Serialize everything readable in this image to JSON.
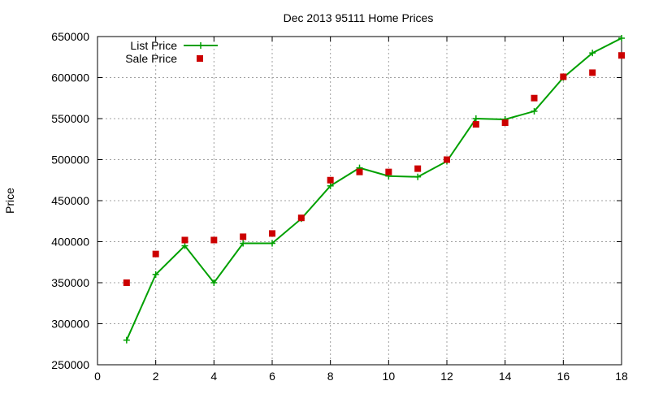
{
  "chart_data": {
    "type": "line",
    "title": "Dec 2013 95111 Home Prices",
    "xlabel": "",
    "ylabel": "Price",
    "xlim": [
      0,
      18
    ],
    "ylim": [
      250000,
      650000
    ],
    "x_ticks": [
      0,
      2,
      4,
      6,
      8,
      10,
      12,
      14,
      16,
      18
    ],
    "y_ticks": [
      250000,
      300000,
      350000,
      400000,
      450000,
      500000,
      550000,
      600000,
      650000
    ],
    "grid": true,
    "legend_position": "top-left",
    "series": [
      {
        "name": "List Price",
        "style": "line-with-plus-markers",
        "color": "#00a000",
        "x": [
          1,
          2,
          3,
          4,
          5,
          6,
          7,
          8,
          9,
          10,
          11,
          12,
          13,
          14,
          15,
          16,
          17,
          18
        ],
        "values": [
          280000,
          360000,
          395000,
          350000,
          398000,
          398000,
          428000,
          468000,
          490000,
          480000,
          479000,
          498000,
          550000,
          549000,
          559000,
          600000,
          630000,
          648000
        ]
      },
      {
        "name": "Sale Price",
        "style": "square-markers",
        "color": "#cc0000",
        "x": [
          1,
          2,
          3,
          4,
          5,
          6,
          7,
          8,
          9,
          10,
          11,
          12,
          13,
          14,
          15,
          16,
          17,
          18
        ],
        "values": [
          350000,
          385000,
          402000,
          402000,
          406000,
          410000,
          429000,
          475000,
          485000,
          485000,
          489000,
          500000,
          543000,
          545000,
          575000,
          601000,
          606000,
          627000
        ]
      }
    ]
  }
}
